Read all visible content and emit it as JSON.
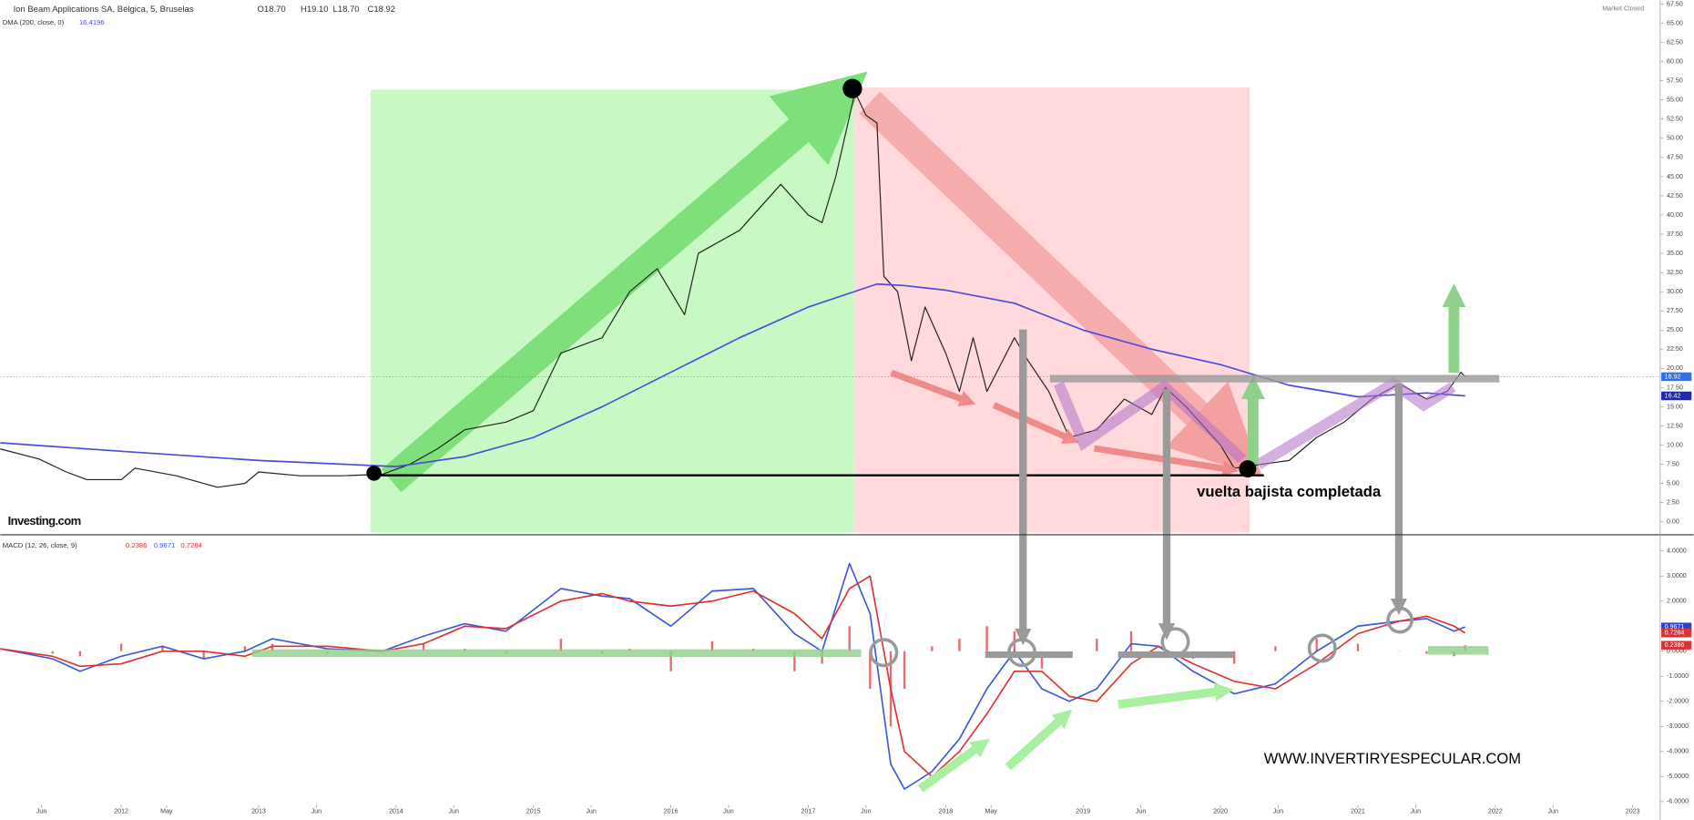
{
  "chart_data": [
    {
      "type": "line",
      "title": "Ion Beam Applications SA, Bélgica, 5, Bruselas",
      "quote": [
        "O18.70",
        "H19.10",
        "L18.70",
        "C18.92"
      ],
      "status": "Market Closed",
      "sma_title": "DMA (200, close, 0)",
      "sma_value": 16.4196,
      "price_tags": [
        18.92,
        16.42
      ],
      "annotations": [
        "vuelta bajista completada",
        "Investing.com",
        "WWW.INVERTIRYESPECULAR.COM"
      ],
      "xlim": [
        2011.12,
        2023.2
      ],
      "ylim": [
        -1.69,
        68.03
      ],
      "yticks": [
        {
          "value": 0,
          "label": "0.00"
        },
        {
          "value": 2.5,
          "label": "2.50"
        },
        {
          "value": 5,
          "label": "5.00"
        },
        {
          "value": 7.5,
          "label": "7.50"
        },
        {
          "value": 10,
          "label": "10.00"
        },
        {
          "value": 12.5,
          "label": "12.50"
        },
        {
          "value": 15,
          "label": "15.00"
        },
        {
          "value": 17.5,
          "label": "17.50"
        },
        {
          "value": 20,
          "label": "20.00"
        },
        {
          "value": 22.5,
          "label": "22.50"
        },
        {
          "value": 25,
          "label": "25.00"
        },
        {
          "value": 27.5,
          "label": "27.50"
        },
        {
          "value": 30,
          "label": "30.00"
        },
        {
          "value": 32.5,
          "label": "32.50"
        },
        {
          "value": 35,
          "label": "35.00"
        },
        {
          "value": 37.5,
          "label": "37.50"
        },
        {
          "value": 40,
          "label": "40.00"
        },
        {
          "value": 42.5,
          "label": "42.50"
        },
        {
          "value": 45,
          "label": "45.00"
        },
        {
          "value": 47.5,
          "label": "47.50"
        },
        {
          "value": 50,
          "label": "50.00"
        },
        {
          "value": 52.5,
          "label": "52.50"
        },
        {
          "value": 55,
          "label": "55.00"
        },
        {
          "value": 57.5,
          "label": "57.50"
        },
        {
          "value": 60,
          "label": "60.00"
        },
        {
          "value": 62.5,
          "label": "62.50"
        },
        {
          "value": 65,
          "label": "65.00"
        },
        {
          "value": 67.5,
          "label": "67.50"
        }
      ],
      "series": [
        {
          "color": "#222222",
          "x": [
            2011.12,
            2011.4,
            2011.6,
            2011.75,
            2012.0,
            2012.1,
            2012.4,
            2012.7,
            2012.9,
            2013.0,
            2013.3,
            2013.6,
            2013.9,
            2014.1,
            2014.3,
            2014.5,
            2014.8,
            2015.0,
            2015.2,
            2015.5,
            2015.7,
            2015.9,
            2016.1,
            2016.2,
            2016.5,
            2016.8,
            2017.0,
            2017.1,
            2017.2,
            2017.34,
            2017.42,
            2017.5,
            2017.55,
            2017.65,
            2017.75,
            2017.85,
            2018.0,
            2018.1,
            2018.2,
            2018.3,
            2018.5,
            2018.6,
            2018.75,
            2018.9,
            2019.1,
            2019.3,
            2019.5,
            2019.6,
            2019.75,
            2020.0,
            2020.1,
            2020.3,
            2020.5,
            2020.7,
            2020.9,
            2021.1,
            2021.3,
            2021.5,
            2021.65,
            2021.75,
            2021.78
          ],
          "values": [
            9.5,
            8.2,
            6.5,
            5.5,
            5.5,
            7,
            6,
            4.5,
            5,
            6.5,
            6,
            6,
            6.2,
            7.5,
            9.5,
            12,
            13,
            14.5,
            22,
            24,
            30,
            33,
            27,
            35,
            38,
            44,
            40,
            39,
            45,
            56,
            53,
            52,
            32,
            30,
            21,
            28,
            22,
            17,
            24,
            17,
            24,
            21,
            17,
            11,
            12,
            16,
            14,
            17.5,
            15,
            10,
            7,
            7.5,
            8,
            11,
            13,
            16,
            18,
            16,
            17,
            19.5,
            18.92
          ]
        },
        {
          "color": "#4b4bdc",
          "x": [
            2011.12,
            2012.0,
            2013.0,
            2014.0,
            2014.5,
            2015.0,
            2015.5,
            2016.0,
            2016.5,
            2017.0,
            2017.5,
            2017.7,
            2018.0,
            2018.5,
            2019.0,
            2019.5,
            2020.0,
            2020.5,
            2021.0,
            2021.5,
            2021.78
          ],
          "values": [
            10.3,
            9.2,
            8.0,
            7.2,
            8.5,
            11,
            15,
            19.5,
            24,
            28,
            31,
            30.8,
            30.2,
            28.5,
            25,
            22.5,
            20.5,
            17.8,
            16.3,
            16.8,
            16.42
          ]
        }
      ]
    },
    {
      "type": "line",
      "title": "MACD (12, 26, close, 9)",
      "header_values": [
        0.2386,
        0.9671,
        0.7284
      ],
      "xlim": [
        2011.12,
        2023.2
      ],
      "ylim": [
        -6.13,
        4.56
      ],
      "yticks": [
        {
          "value": 4,
          "label": "4.0000"
        },
        {
          "value": 3,
          "label": "3.0000"
        },
        {
          "value": 2,
          "label": "2.0000"
        },
        {
          "value": 1,
          "label": "1.0000"
        },
        {
          "value": 0,
          "label": "0.0000"
        },
        {
          "value": -1,
          "label": "-1.0000"
        },
        {
          "value": -2,
          "label": "-2.0000"
        },
        {
          "value": -3,
          "label": "-3.0000"
        },
        {
          "value": -4,
          "label": "-4.0000"
        },
        {
          "value": -5,
          "label": "-5.0000"
        },
        {
          "value": -6,
          "label": "-6.0000"
        }
      ],
      "xticks": [
        {
          "value": 2011.42,
          "label": "Jun"
        },
        {
          "value": 2012,
          "label": "2012"
        },
        {
          "value": 2012.33,
          "label": "May"
        },
        {
          "value": 2013,
          "label": "2013"
        },
        {
          "value": 2013.42,
          "label": "Jun"
        },
        {
          "value": 2014,
          "label": "2014"
        },
        {
          "value": 2014.42,
          "label": "Jun"
        },
        {
          "value": 2015,
          "label": "2015"
        },
        {
          "value": 2015.42,
          "label": "Jun"
        },
        {
          "value": 2016,
          "label": "2016"
        },
        {
          "value": 2016.42,
          "label": "Jun"
        },
        {
          "value": 2017,
          "label": "2017"
        },
        {
          "value": 2017.42,
          "label": "Jun"
        },
        {
          "value": 2018,
          "label": "2018"
        },
        {
          "value": 2018.33,
          "label": "May"
        },
        {
          "value": 2019,
          "label": "2019"
        },
        {
          "value": 2019.42,
          "label": "Jun"
        },
        {
          "value": 2020,
          "label": "2020"
        },
        {
          "value": 2020.42,
          "label": "Jun"
        },
        {
          "value": 2021,
          "label": "2021"
        },
        {
          "value": 2021.42,
          "label": "Jun"
        },
        {
          "value": 2022,
          "label": "2022"
        },
        {
          "value": 2022.42,
          "label": "Jun"
        },
        {
          "value": 2023,
          "label": "2023"
        }
      ],
      "x": [
        2011.12,
        2011.5,
        2011.7,
        2012.0,
        2012.3,
        2012.6,
        2012.9,
        2013.1,
        2013.5,
        2013.9,
        2014.2,
        2014.5,
        2014.8,
        2015.2,
        2015.5,
        2015.7,
        2016.0,
        2016.3,
        2016.6,
        2016.9,
        2017.1,
        2017.3,
        2017.45,
        2017.6,
        2017.7,
        2017.9,
        2018.1,
        2018.3,
        2018.5,
        2018.7,
        2018.9,
        2019.1,
        2019.35,
        2019.55,
        2019.8,
        2020.1,
        2020.4,
        2020.7,
        2021.0,
        2021.3,
        2021.5,
        2021.7,
        2021.78
      ],
      "histogram": {
        "color": "#e04848",
        "values": [
          0.0,
          -0.1,
          -0.2,
          0.3,
          0.2,
          -0.3,
          0.2,
          0.3,
          -0.1,
          0.0,
          0.3,
          0.1,
          -0.1,
          0.5,
          -0.1,
          0.1,
          -0.8,
          0.4,
          0.1,
          -0.8,
          -0.5,
          1.0,
          -1.5,
          -3.0,
          -1.5,
          0.2,
          0.5,
          1.0,
          0.8,
          -0.7,
          -0.2,
          0.5,
          0.8,
          0.0,
          -0.3,
          -0.5,
          0.2,
          0.5,
          0.3,
          0.0,
          -0.1,
          -0.2,
          0.2386
        ]
      },
      "series": [
        {
          "color": "#3b5bdb",
          "values": [
            0.1,
            -0.3,
            -0.8,
            -0.2,
            0.2,
            -0.3,
            0.0,
            0.5,
            0.1,
            0.0,
            0.6,
            1.1,
            0.8,
            2.5,
            2.2,
            2.1,
            1.0,
            2.4,
            2.5,
            0.7,
            0.0,
            3.5,
            1.5,
            -4.5,
            -5.5,
            -4.8,
            -3.5,
            -1.5,
            0.0,
            -1.5,
            -2.0,
            -1.5,
            0.3,
            0.2,
            -0.8,
            -1.7,
            -1.3,
            0.0,
            1.0,
            1.2,
            1.3,
            0.8,
            0.9671
          ]
        },
        {
          "color": "#e03131",
          "values": [
            0.1,
            -0.2,
            -0.6,
            -0.5,
            0.0,
            0.0,
            -0.2,
            0.2,
            0.2,
            0.0,
            0.3,
            1.0,
            0.9,
            2.0,
            2.3,
            2.0,
            1.8,
            2.0,
            2.4,
            1.5,
            0.5,
            2.5,
            3.0,
            -1.5,
            -4.0,
            -5.0,
            -4.0,
            -2.5,
            -0.8,
            -0.8,
            -1.8,
            -2.0,
            -0.5,
            0.2,
            -0.5,
            -1.2,
            -1.5,
            -0.5,
            0.7,
            1.2,
            1.4,
            1.0,
            0.7284
          ]
        }
      ]
    }
  ]
}
